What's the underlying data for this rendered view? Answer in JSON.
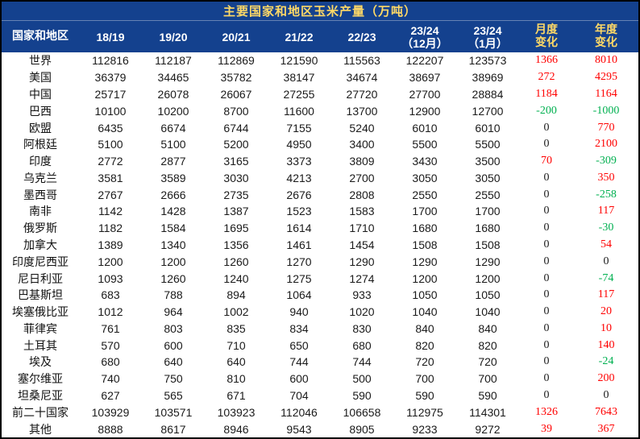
{
  "colors": {
    "header_bg": "#14418E",
    "header_text": "#FFFFFF",
    "accent_gold": "#FFD966",
    "positive_red": "#FF0000",
    "negative_green": "#00B050",
    "body_bg": "#FFFFFF",
    "border": "#000000"
  },
  "chart_data": {
    "type": "table",
    "title": "主要国家和地区玉米产量（万吨）",
    "columns": [
      "国家和地区",
      "18/19",
      "19/20",
      "20/21",
      "21/22",
      "22/23",
      "23/24\n（12月）",
      "23/24\n（1月）",
      "月度\n变化",
      "年度\n变化"
    ],
    "rows": [
      {
        "name": "世界",
        "values": [
          112816,
          112187,
          112869,
          121590,
          115563,
          122207,
          123573
        ],
        "monthly": 1366,
        "yearly": 8010
      },
      {
        "name": "美国",
        "values": [
          36379,
          34465,
          35782,
          38147,
          34674,
          38697,
          38969
        ],
        "monthly": 272,
        "yearly": 4295
      },
      {
        "name": "中国",
        "values": [
          25717,
          26078,
          26067,
          27255,
          27720,
          27700,
          28884
        ],
        "monthly": 1184,
        "yearly": 1164
      },
      {
        "name": "巴西",
        "values": [
          10100,
          10200,
          8700,
          11600,
          13700,
          12900,
          12700
        ],
        "monthly": -200,
        "yearly": -1000
      },
      {
        "name": "欧盟",
        "values": [
          6435,
          6674,
          6744,
          7155,
          5240,
          6010,
          6010
        ],
        "monthly": 0,
        "yearly": 770
      },
      {
        "name": "阿根廷",
        "values": [
          5100,
          5100,
          5200,
          4950,
          3400,
          5500,
          5500
        ],
        "monthly": 0,
        "yearly": 2100
      },
      {
        "name": "印度",
        "values": [
          2772,
          2877,
          3165,
          3373,
          3809,
          3430,
          3500
        ],
        "monthly": 70,
        "yearly": -309
      },
      {
        "name": "乌克兰",
        "values": [
          3581,
          3589,
          3030,
          4213,
          2700,
          3050,
          3050
        ],
        "monthly": 0,
        "yearly": 350
      },
      {
        "name": "墨西哥",
        "values": [
          2767,
          2666,
          2735,
          2676,
          2808,
          2550,
          2550
        ],
        "monthly": 0,
        "yearly": -258
      },
      {
        "name": "南非",
        "values": [
          1142,
          1428,
          1387,
          1523,
          1583,
          1700,
          1700
        ],
        "monthly": 0,
        "yearly": 117
      },
      {
        "name": "俄罗斯",
        "values": [
          1182,
          1584,
          1695,
          1614,
          1710,
          1680,
          1680
        ],
        "monthly": 0,
        "yearly": -30
      },
      {
        "name": "加拿大",
        "values": [
          1389,
          1340,
          1356,
          1461,
          1454,
          1508,
          1508
        ],
        "monthly": 0,
        "yearly": 54
      },
      {
        "name": "印度尼西亚",
        "values": [
          1200,
          1200,
          1260,
          1270,
          1290,
          1290,
          1290
        ],
        "monthly": 0,
        "yearly": 0
      },
      {
        "name": "尼日利亚",
        "values": [
          1093,
          1260,
          1240,
          1275,
          1274,
          1200,
          1200
        ],
        "monthly": 0,
        "yearly": -74
      },
      {
        "name": "巴基斯坦",
        "values": [
          683,
          788,
          894,
          1064,
          933,
          1050,
          1050
        ],
        "monthly": 0,
        "yearly": 117
      },
      {
        "name": "埃塞俄比亚",
        "values": [
          1012,
          964,
          1002,
          940,
          1020,
          1040,
          1040
        ],
        "monthly": 0,
        "yearly": 20
      },
      {
        "name": "菲律宾",
        "values": [
          761,
          803,
          835,
          834,
          830,
          840,
          840
        ],
        "monthly": 0,
        "yearly": 10
      },
      {
        "name": "土耳其",
        "values": [
          570,
          600,
          710,
          650,
          680,
          820,
          820
        ],
        "monthly": 0,
        "yearly": 140
      },
      {
        "name": "埃及",
        "values": [
          680,
          640,
          640,
          744,
          744,
          720,
          720
        ],
        "monthly": 0,
        "yearly": -24
      },
      {
        "name": "塞尔维亚",
        "values": [
          740,
          750,
          810,
          600,
          500,
          700,
          700
        ],
        "monthly": 0,
        "yearly": 200
      },
      {
        "name": "坦桑尼亚",
        "values": [
          627,
          565,
          671,
          704,
          590,
          590,
          590
        ],
        "monthly": 0,
        "yearly": 0
      },
      {
        "name": "前二十国家",
        "values": [
          103929,
          103571,
          103923,
          112046,
          106658,
          112975,
          114301
        ],
        "monthly": 1326,
        "yearly": 7643
      },
      {
        "name": "其他",
        "values": [
          8888,
          8617,
          8946,
          9543,
          8905,
          9233,
          9272
        ],
        "monthly": 39,
        "yearly": 367
      }
    ]
  }
}
